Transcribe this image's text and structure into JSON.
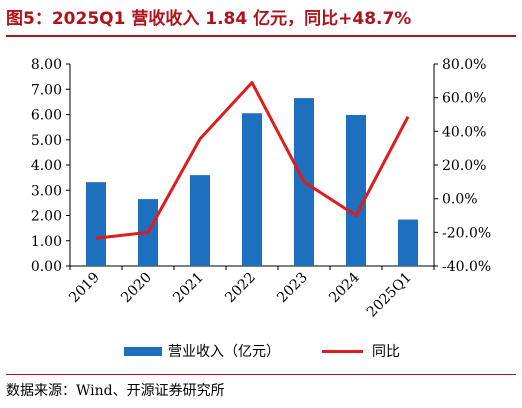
{
  "title": "图5：2025Q1 营收收入 1.84 亿元，同比+48.7%",
  "source": "数据来源：Wind、开源证券研究所",
  "colors": {
    "bar": "#1f6fbf",
    "line": "#e01b1b",
    "accent": "#b0121b"
  },
  "chart_data": {
    "type": "bar",
    "categories": [
      "2019",
      "2020",
      "2021",
      "2022",
      "2023",
      "2024",
      "2025Q1"
    ],
    "series": [
      {
        "name": "营业收入（亿元）",
        "type": "bar",
        "axis": "left",
        "values": [
          3.32,
          2.65,
          3.6,
          6.05,
          6.65,
          5.98,
          1.84
        ]
      },
      {
        "name": "同比",
        "type": "line",
        "axis": "right",
        "values": [
          -23.5,
          -20.0,
          35.5,
          69.0,
          10.0,
          -10.0,
          48.7
        ]
      }
    ],
    "y_left": {
      "min": 0,
      "max": 8,
      "step": 1,
      "ticks": [
        "0.00",
        "1.00",
        "2.00",
        "3.00",
        "4.00",
        "5.00",
        "6.00",
        "7.00",
        "8.00"
      ]
    },
    "y_right": {
      "min": -40,
      "max": 80,
      "step": 20,
      "ticks": [
        "-40.0%",
        "-20.0%",
        "0.0%",
        "20.0%",
        "40.0%",
        "60.0%",
        "80.0%"
      ]
    },
    "grid": false,
    "legend_position": "bottom"
  }
}
